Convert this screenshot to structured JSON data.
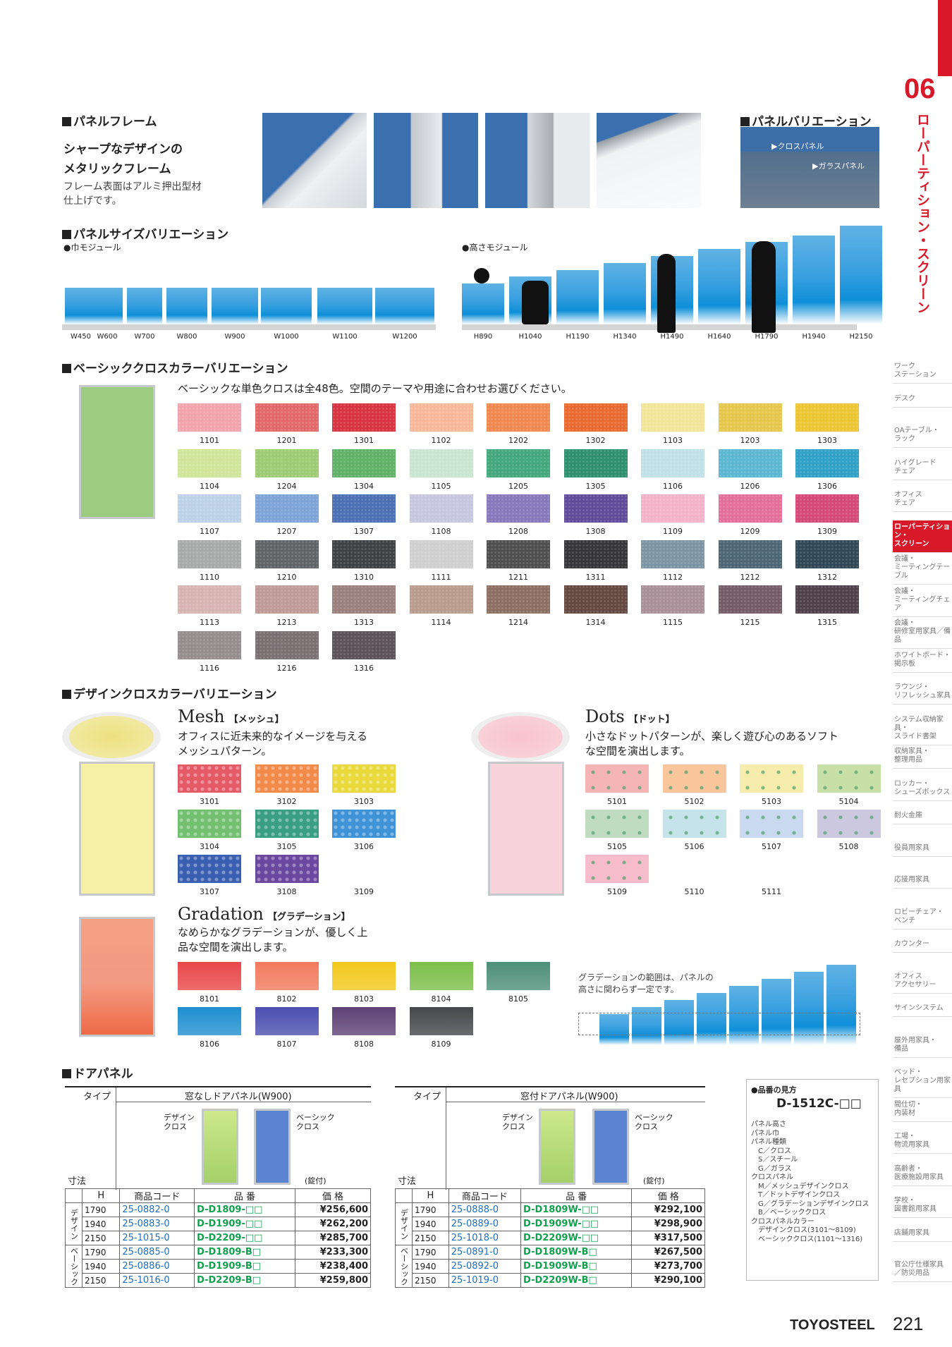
{
  "header": {
    "chapter_num": "06",
    "chapter_title": "ローパーティション・スクリーン"
  },
  "frame": {
    "heading": "パネルフレーム",
    "title1": "シャープなデザインの",
    "title2": "メタリックフレーム",
    "body1": "フレーム表面はアルミ押出型材",
    "body2": "仕上げです。"
  },
  "panel_var": {
    "heading": "パネルバリエーション",
    "cloth": "▶クロスパネル",
    "glass": "▶ガラスパネル"
  },
  "size": {
    "heading": "パネルサイズバリエーション",
    "width_module": "●巾モジュール",
    "height_module": "●高さモジュール",
    "widths": [
      "W450",
      "W600",
      "W700",
      "W800",
      "W900",
      "W1000",
      "W1100",
      "W1200"
    ],
    "heights": [
      "H890",
      "H1040",
      "H1190",
      "H1340",
      "H1490",
      "H1640",
      "H1790",
      "H1940",
      "H2150"
    ]
  },
  "basic": {
    "heading": "ベーシッククロスカラーバリエーション",
    "desc": "ベーシックな単色クロスは全48色。空間のテーマや用途に合わせお選びください。",
    "colors": [
      [
        "1101",
        "#f2a3ab"
      ],
      [
        "1201",
        "#e26869"
      ],
      [
        "1301",
        "#d7323f"
      ],
      [
        "1102",
        "#f7b89a"
      ],
      [
        "1202",
        "#f0874f"
      ],
      [
        "1302",
        "#e96a2f"
      ],
      [
        "1103",
        "#f3e49a"
      ],
      [
        "1203",
        "#e6c74c"
      ],
      [
        "1303",
        "#ecc532"
      ],
      [
        "1104",
        "#cfe59a"
      ],
      [
        "1204",
        "#9dcb73"
      ],
      [
        "1304",
        "#5fb168"
      ],
      [
        "1105",
        "#c8e6cf"
      ],
      [
        "1205",
        "#42a77b"
      ],
      [
        "1305",
        "#2d8f6e"
      ],
      [
        "1106",
        "#bfe1e6"
      ],
      [
        "1206",
        "#5ab6d1"
      ],
      [
        "1306",
        "#2e9fc6"
      ],
      [
        "1107",
        "#bcd1e8"
      ],
      [
        "1207",
        "#7ea3d7"
      ],
      [
        "1307",
        "#4a6fb4"
      ],
      [
        "1108",
        "#c7c6df"
      ],
      [
        "1208",
        "#8578bb"
      ],
      [
        "1308",
        "#5e4a99"
      ],
      [
        "1109",
        "#f3b2c7"
      ],
      [
        "1209",
        "#e46e9a"
      ],
      [
        "1309",
        "#d44878"
      ],
      [
        "1110",
        "#a8aaaa"
      ],
      [
        "1210",
        "#606366"
      ],
      [
        "1310",
        "#3d4042"
      ],
      [
        "1111",
        "#cfcfcf"
      ],
      [
        "1211",
        "#4e4d4e"
      ],
      [
        "1311",
        "#353436"
      ],
      [
        "1112",
        "#7c94a2"
      ],
      [
        "1212",
        "#4c6574"
      ],
      [
        "1312",
        "#2f4654"
      ],
      [
        "1113",
        "#d7b4b2"
      ],
      [
        "1213",
        "#bf9a96"
      ],
      [
        "1313",
        "#9a7f7b"
      ],
      [
        "1114",
        "#b99b8c"
      ],
      [
        "1214",
        "#8c6e61"
      ],
      [
        "1314",
        "#64473f"
      ],
      [
        "1115",
        "#a98f98"
      ],
      [
        "1215",
        "#735b66"
      ],
      [
        "1315",
        "#4f3f49"
      ],
      [
        "1116",
        "#948b8d"
      ],
      [
        "1216",
        "#7a6f72"
      ],
      [
        "1316",
        "#5b5156"
      ]
    ]
  },
  "design": {
    "heading": "デザインクロスカラーバリエーション",
    "mesh": {
      "title": "Mesh",
      "sub": "【メッシュ】",
      "d1": "オフィスに近未来的なイメージを与える",
      "d2": "メッシュパターン。",
      "colors": [
        [
          "3101",
          "#e55a67"
        ],
        [
          "3102",
          "#f28a4a"
        ],
        [
          "3103",
          "#ead93b"
        ],
        [
          "3104",
          "#74c070"
        ],
        [
          "3105",
          "#3a9f82"
        ],
        [
          "3106",
          "#3f92d6"
        ],
        [
          "3107",
          "#3a5fb0"
        ],
        [
          "3108",
          "#6b48a0"
        ],
        [
          "3109",
          ""
        ]
      ]
    },
    "dots": {
      "title": "Dots",
      "sub": "【ドット】",
      "d1": "小さなドットパターンが、楽しく遊び心のあるソフト",
      "d2": "な空間を演出します。",
      "colors": [
        [
          "5101",
          "#f6b5b5"
        ],
        [
          "5102",
          "#f8c59c"
        ],
        [
          "5103",
          "#f6ecab"
        ],
        [
          "5104",
          "#c8e0a7"
        ],
        [
          "5105",
          "#bfdcc1"
        ],
        [
          "5106",
          "#c7e3ea"
        ],
        [
          "5107",
          "#c9d9ef"
        ],
        [
          "5108",
          "#cbc8e0"
        ],
        [
          "5109",
          "#f7bccb"
        ],
        [
          "5110",
          ""
        ],
        [
          "5111",
          ""
        ]
      ]
    },
    "grad": {
      "title": "Gradation",
      "sub": "【グラデーション】",
      "d1": "なめらかなグラデーションが、優しく上",
      "d2": "品な空間を演出します。",
      "note1": "グラデーションの範囲は、パネルの",
      "note2": "高さに関わらず一定です。",
      "colors": [
        [
          "8101",
          "#e8474a"
        ],
        [
          "8102",
          "#f27a5e"
        ],
        [
          "8103",
          "#f2c81c"
        ],
        [
          "8104",
          "#7cbf4a"
        ],
        [
          "8105",
          "#4e8f79"
        ],
        [
          "8106",
          "#1f8fd0"
        ],
        [
          "8107",
          "#4c4fb0"
        ],
        [
          "8108",
          "#5e4277"
        ],
        [
          "8109",
          "#45474a"
        ]
      ]
    }
  },
  "door": {
    "heading": "ドアパネル",
    "t1": {
      "type": "タイプ",
      "name": "窓なしドアパネル(W900)",
      "dim": "寸法",
      "lbl_design": "デザイン\nクロス",
      "lbl_basic": "ベーシック\nクロス",
      "lock": "(錠付)"
    },
    "t2": {
      "type": "タイプ",
      "name": "窓付ドアパネル(W900)",
      "dim": "寸法",
      "lbl_design": "デザイン\nクロス",
      "lbl_basic": "ベーシック\nクロス",
      "lock": "(錠付)"
    },
    "cols": [
      "H",
      "商品コード",
      "品 番",
      "価 格"
    ],
    "grp_design": "デザイン",
    "grp_basic": "ベーシック",
    "rows1": [
      [
        "1790",
        "25-0882-0",
        "D-D1809-□□",
        "¥256,600"
      ],
      [
        "1940",
        "25-0883-0",
        "D-D1909-□□",
        "¥262,200"
      ],
      [
        "2150",
        "25-1015-0",
        "D-D2209-□□",
        "¥285,700"
      ],
      [
        "1790",
        "25-0885-0",
        "D-D1809-B□",
        "¥233,300"
      ],
      [
        "1940",
        "25-0886-0",
        "D-D1909-B□",
        "¥238,400"
      ],
      [
        "2150",
        "25-1016-0",
        "D-D2209-B□",
        "¥259,800"
      ]
    ],
    "rows2": [
      [
        "1790",
        "25-0888-0",
        "D-D1809W-□□",
        "¥292,100"
      ],
      [
        "1940",
        "25-0889-0",
        "D-D1909W-□□",
        "¥298,900"
      ],
      [
        "2150",
        "25-1018-0",
        "D-D2209W-□□",
        "¥317,500"
      ],
      [
        "1790",
        "25-0891-0",
        "D-D1809W-B□",
        "¥267,500"
      ],
      [
        "1940",
        "25-0892-0",
        "D-D1909W-B□",
        "¥273,700"
      ],
      [
        "2150",
        "25-1019-0",
        "D-D2209W-B□",
        "¥290,100"
      ]
    ]
  },
  "code": {
    "title": "●品番の見方",
    "code": "D-1512C-□□",
    "lines": [
      "パネル高さ",
      "パネル巾",
      "パネル種類",
      "　C／クロス",
      "　S／スチール",
      "　G／ガラス",
      "クロスパネル",
      "　M／メッシュデザインクロス",
      "　T／ドットデザインクロス",
      "　G／グラデーションデザインクロス",
      "　B／ベーシッククロス",
      "クロスパネルカラー",
      "　デザインクロス(3101～8109)",
      "　ベーシッククロス(1101～1316)"
    ]
  },
  "nav": [
    [
      "ワーク",
      "ステーション"
    ],
    [
      "デスク",
      ""
    ],
    [
      "OAテーブル・",
      "ラック"
    ],
    [
      "ハイグレード",
      "チェア"
    ],
    [
      "オフィス",
      "チェア"
    ],
    [
      "ローパーティション・",
      "スクリーン"
    ],
    [
      "会議・",
      "ミーティングテーブル"
    ],
    [
      "会議・",
      "ミーティングチェア"
    ],
    [
      "会議・",
      "研修室用家具／備品"
    ],
    [
      "ホワイトボード・",
      "掲示板"
    ],
    [
      "ラウンジ・",
      "リフレッシュ家具"
    ],
    [
      "システム収納家具・",
      "スライド書架"
    ],
    [
      "収納家具・",
      "整理用品"
    ],
    [
      "ロッカー・",
      "シューズボックス"
    ],
    [
      "耐火金庫",
      ""
    ],
    [
      "役員用家具",
      ""
    ],
    [
      "応接用家具",
      ""
    ],
    [
      "ロビーチェア・",
      "ベンチ"
    ],
    [
      "カウンター",
      ""
    ],
    [
      "オフィス",
      "アクセサリー"
    ],
    [
      "サインシステム",
      ""
    ],
    [
      "屋外用家具・",
      "備品"
    ],
    [
      "ベッド・",
      "レセプション用家具"
    ],
    [
      "間仕切・",
      "内装材"
    ],
    [
      "工場・",
      "物流用家具"
    ],
    [
      "高齢者・",
      "医療施設用家具"
    ],
    [
      "学校・",
      "図書館用家具"
    ],
    [
      "店舗用家具",
      ""
    ],
    [
      "官公庁仕様家具",
      "／防災用品"
    ]
  ],
  "footer": {
    "brand": "TOYOSTEEL",
    "page": "221"
  }
}
